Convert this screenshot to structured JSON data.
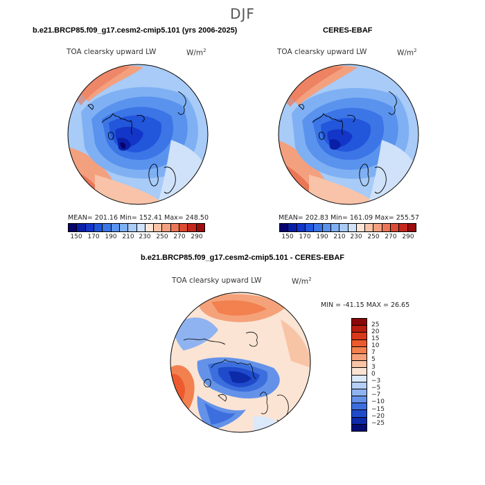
{
  "season": "DJF",
  "panel_left": {
    "title": "b.e21.BRCP85.f09_g17.cesm2-cmip5.101 (yrs 2006-2025)",
    "variable": "TOA clearsky upward LW",
    "units": "W/m",
    "units_sup": "2",
    "stats": "MEAN= 201.16   Min= 152.41   Max= 248.50"
  },
  "panel_right": {
    "title": "CERES-EBAF",
    "variable": "TOA clearsky upward LW",
    "units": "W/m",
    "units_sup": "2",
    "stats": "MEAN= 202.83   Min= 161.09   Max= 255.57"
  },
  "panel_diff": {
    "title": "b.e21.BRCP85.f09_g17.cesm2-cmip5.101 - CERES-EBAF",
    "variable": "TOA clearsky upward LW",
    "units": "W/m",
    "units_sup": "2",
    "minmax": "MIN = -41.15  MAX =  26.65"
  },
  "colorbar_levels": [
    "150",
    "170",
    "190",
    "210",
    "230",
    "250",
    "270",
    "290"
  ],
  "diff_levels": [
    "25",
    "20",
    "15",
    "10",
    "7",
    "5",
    "3",
    "0",
    "−3",
    "−5",
    "−7",
    "−10",
    "−15",
    "−20",
    "−25"
  ],
  "colors": {
    "abs_scale": [
      "#08046e",
      "#0a1fa8",
      "#1336c8",
      "#2256db",
      "#3b75e6",
      "#5a93ee",
      "#7fb0f3",
      "#a8cbf7",
      "#cfe2fa",
      "#fde4d6",
      "#f8c3a8",
      "#f3a07f",
      "#ea7656",
      "#dc4b32",
      "#c5281c",
      "#9c0e0e"
    ],
    "diff_scale": [
      "#8a0808",
      "#b81d10",
      "#d9381a",
      "#ec5a2e",
      "#f2814f",
      "#f5a27a",
      "#f8c4a6",
      "#fbe4d4",
      "#dce9fa",
      "#b5cff6",
      "#8fb3f0",
      "#6492e8",
      "#3c6fdd",
      "#1f4bcb",
      "#0d2aa8",
      "#050c73"
    ]
  }
}
